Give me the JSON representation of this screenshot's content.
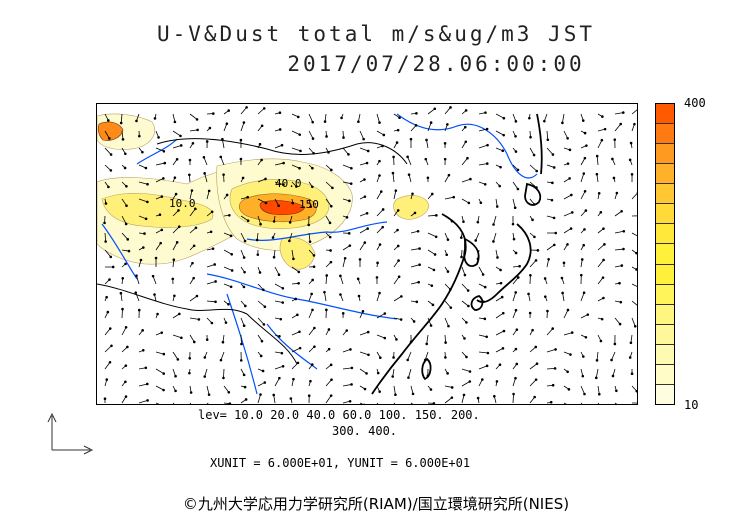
{
  "title": {
    "line1": "U-V&Dust total m/s&ug/m3 JST",
    "line2": "2017/07/28.06:00:00"
  },
  "colorbar": {
    "max_label": "400",
    "min_label": "10",
    "colors_top_to_bottom": [
      "#ff5a00",
      "#ff7a10",
      "#ff9a20",
      "#ffb12a",
      "#ffc832",
      "#ffda38",
      "#ffe83a",
      "#fff03c",
      "#fff03c",
      "#fff45a",
      "#fff680",
      "#fff89a",
      "#fffab2",
      "#fffcc8",
      "#fffde0"
    ]
  },
  "contour_labels": [
    "10.0",
    "40.0",
    "150"
  ],
  "levels": {
    "line1": "lev= 10.0 20.0 40.0 60.0 100. 150. 200.",
    "line2": "300. 400."
  },
  "units": "XUNIT = 6.000E+01, YUNIT = 6.000E+01",
  "copyright": "©九州大学応用力学研究所(RIAM)/国立環境研究所(NIES)",
  "map_colors": {
    "coast": "#000000",
    "rivers": "#0050ff",
    "borders": "#000000",
    "dust_low": "#fffbd0",
    "dust_mid": "#fff07a",
    "dust_high": "#ffb028",
    "dust_peak": "#ff4a00"
  }
}
